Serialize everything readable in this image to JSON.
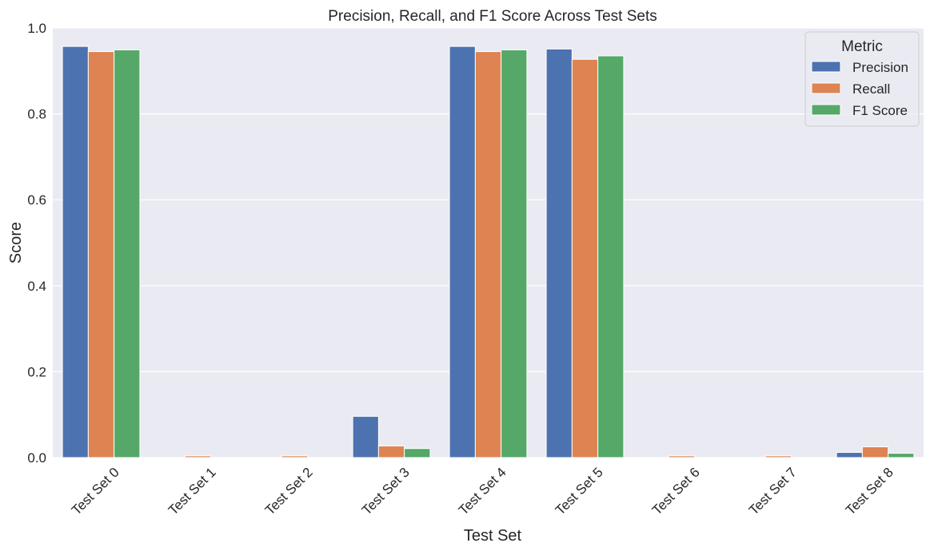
{
  "chart_data": {
    "type": "bar",
    "title": "Precision, Recall, and F1 Score Across Test Sets",
    "xlabel": "Test Set",
    "ylabel": "Score",
    "ylim": [
      0,
      1.0
    ],
    "yticks": [
      0.0,
      0.2,
      0.4,
      0.6,
      0.8,
      1.0
    ],
    "ytick_labels": [
      "0.0",
      "0.2",
      "0.4",
      "0.6",
      "0.8",
      "1.0"
    ],
    "grid": true,
    "legend": {
      "title": "Metric",
      "placement": "top-right"
    },
    "categories": [
      "Test Set 0",
      "Test Set 1",
      "Test Set 2",
      "Test Set 3",
      "Test Set 4",
      "Test Set 5",
      "Test Set 6",
      "Test Set 7",
      "Test Set 8"
    ],
    "series": [
      {
        "name": "Precision",
        "color": "#4c72b0",
        "values": [
          0.957,
          0.0,
          0.0,
          0.096,
          0.957,
          0.951,
          0.0,
          0.0,
          0.012
        ]
      },
      {
        "name": "Recall",
        "color": "#dd8452",
        "values": [
          0.945,
          0.004,
          0.004,
          0.027,
          0.945,
          0.927,
          0.004,
          0.004,
          0.025
        ]
      },
      {
        "name": "F1 Score",
        "color": "#55a868",
        "values": [
          0.949,
          0.0,
          0.0,
          0.021,
          0.949,
          0.935,
          0.0,
          0.0,
          0.01
        ]
      }
    ]
  },
  "colors": {
    "plot_background": "#eaeaf2",
    "grid": "#ffffff",
    "text": "#262626"
  }
}
